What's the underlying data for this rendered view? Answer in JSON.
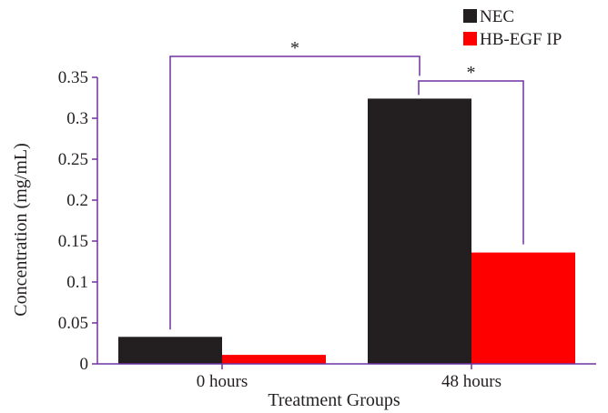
{
  "chart_data": {
    "type": "bar",
    "title": "",
    "xlabel": "Treatment Groups",
    "ylabel": "Concentration (mg/mL)",
    "categories": [
      "0 hours",
      "48 hours"
    ],
    "series": [
      {
        "name": "NEC",
        "values": [
          0.033,
          0.324
        ],
        "color": "#231f20"
      },
      {
        "name": "HB-EGF IP",
        "values": [
          0.011,
          0.136
        ],
        "color": "#ff0000"
      }
    ],
    "ylim": [
      0,
      0.35
    ],
    "yticks": [
      0,
      0.05,
      0.1,
      0.15,
      0.2,
      0.25,
      0.3,
      0.35
    ],
    "ytick_labels": [
      "0",
      "0.05",
      "0.1",
      "0.15",
      "0.2",
      "0.25",
      "0.3",
      "0.35"
    ],
    "grid": false,
    "legend_position": "top-right",
    "significance": [
      {
        "label": "*",
        "from": "0 hours NEC",
        "to": "48 hours NEC"
      },
      {
        "label": "*",
        "from": "48 hours NEC",
        "to": "48 hours HB-EGF IP"
      }
    ],
    "bracket_color": "#7030a0",
    "axis_color": "#7030a0"
  }
}
